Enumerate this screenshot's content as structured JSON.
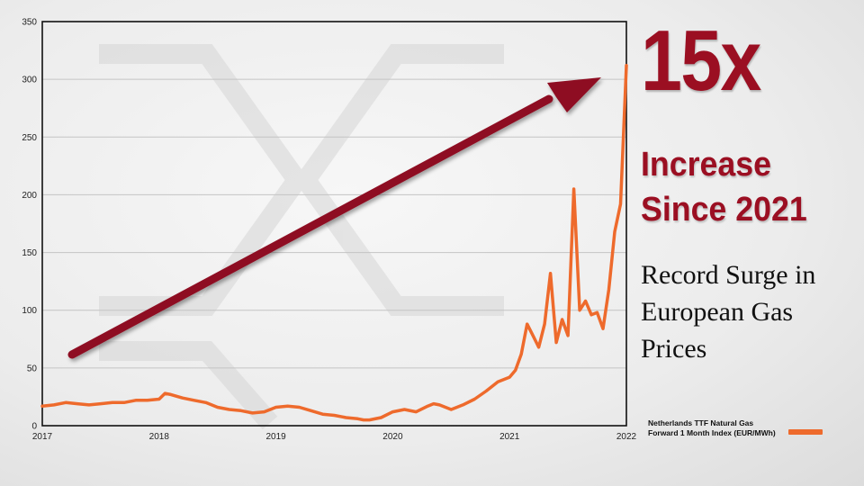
{
  "headline": {
    "big": "15x",
    "line1": "Increase",
    "line2": "Since 2021",
    "tagline_lines": [
      "Record Surge in",
      "European Gas",
      "Prices"
    ]
  },
  "colors": {
    "series": "#ee6a2c",
    "accent": "#9b0f22",
    "arrow": "#8e1022"
  },
  "chart_data": {
    "type": "line",
    "xlabel": "",
    "ylabel": "",
    "xlim": [
      2017,
      2022
    ],
    "ylim": [
      0,
      350
    ],
    "x_ticks": [
      "2017",
      "2018",
      "2019",
      "2020",
      "2021",
      "2022"
    ],
    "y_ticks": [
      "0",
      "50",
      "100",
      "150",
      "200",
      "250",
      "300",
      "350"
    ],
    "grid": "horizontal",
    "legend_position": "bottom-right",
    "series": [
      {
        "name": "Netherlands TTF Natural Gas Forward 1 Month Index (EUR/MWh)",
        "legend_lines": [
          "Netherlands TTF Natural Gas",
          "Forward 1 Month Index (EUR/MWh)"
        ],
        "x": [
          2017.0,
          2017.1,
          2017.2,
          2017.3,
          2017.4,
          2017.5,
          2017.6,
          2017.7,
          2017.8,
          2017.9,
          2018.0,
          2018.05,
          2018.1,
          2018.2,
          2018.3,
          2018.4,
          2018.5,
          2018.6,
          2018.7,
          2018.8,
          2018.9,
          2019.0,
          2019.1,
          2019.2,
          2019.3,
          2019.4,
          2019.5,
          2019.6,
          2019.7,
          2019.75,
          2019.8,
          2019.9,
          2020.0,
          2020.1,
          2020.2,
          2020.3,
          2020.35,
          2020.4,
          2020.5,
          2020.6,
          2020.7,
          2020.8,
          2020.9,
          2021.0,
          2021.05,
          2021.1,
          2021.15,
          2021.2,
          2021.25,
          2021.3,
          2021.35,
          2021.4,
          2021.45,
          2021.5,
          2021.55,
          2021.6,
          2021.65,
          2021.7,
          2021.75,
          2021.8,
          2021.85,
          2021.9,
          2021.95,
          2022.0
        ],
        "y": [
          17,
          18,
          20,
          19,
          18,
          19,
          20,
          20,
          22,
          22,
          23,
          28,
          27,
          24,
          22,
          20,
          16,
          14,
          13,
          11,
          12,
          16,
          17,
          16,
          13,
          10,
          9,
          7,
          6,
          5,
          5,
          7,
          12,
          14,
          12,
          17,
          19,
          18,
          14,
          18,
          23,
          30,
          38,
          42,
          48,
          62,
          88,
          78,
          68,
          88,
          132,
          72,
          92,
          78,
          205,
          100,
          108,
          96,
          98,
          84,
          118,
          168,
          192,
          312
        ]
      }
    ]
  }
}
